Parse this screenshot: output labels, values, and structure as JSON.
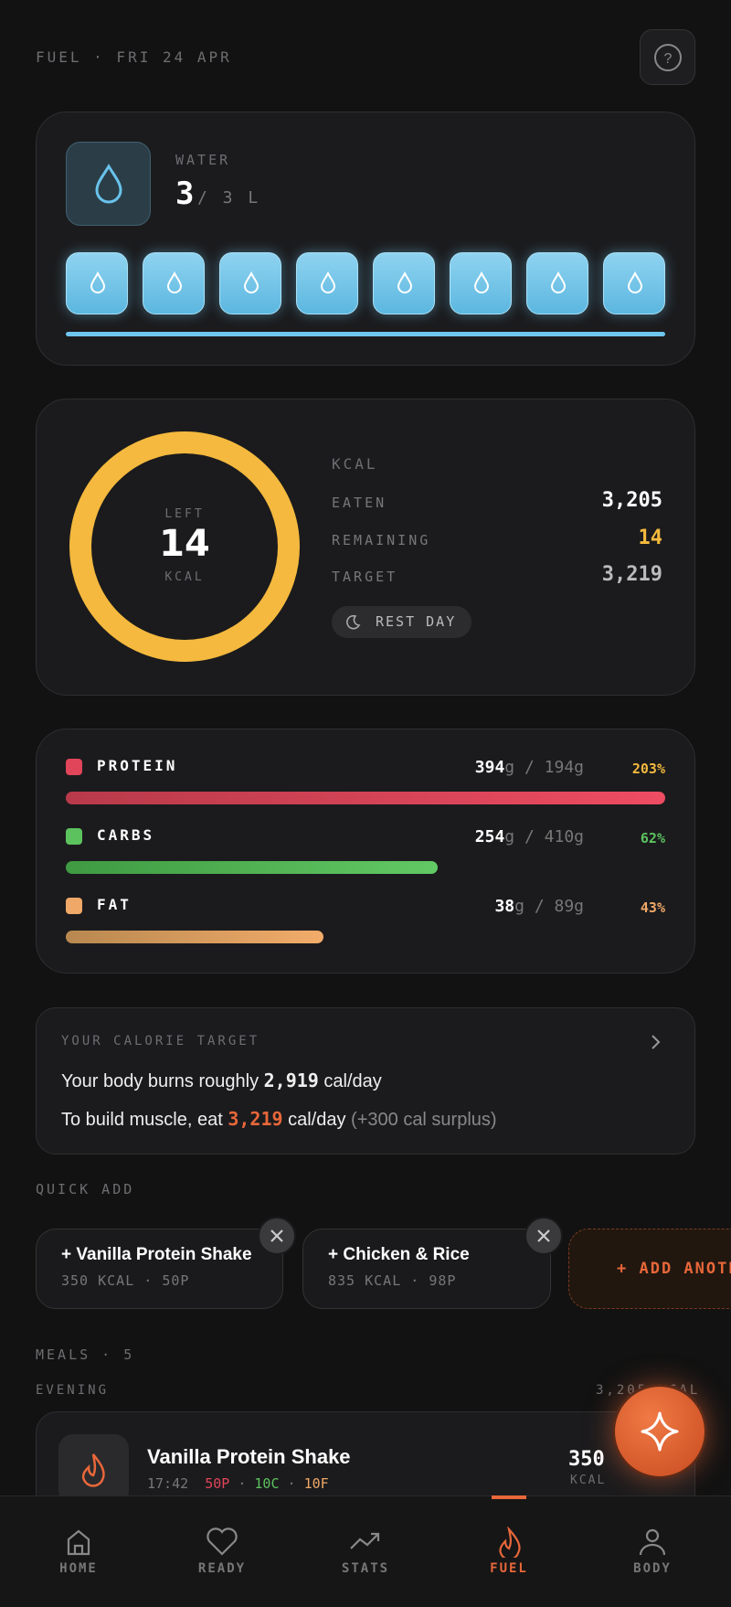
{
  "header": {
    "title": "FUEL · FRI 24 APR"
  },
  "water": {
    "label": "WATER",
    "value": "3",
    "of": "/ 3 L"
  },
  "calories": {
    "ring": {
      "caption": "LEFT",
      "value": "14",
      "unit": "KCAL"
    },
    "heading": "KCAL",
    "rows": [
      {
        "label": "EATEN",
        "value": "3,205"
      },
      {
        "label": "REMAINING",
        "value": "14"
      },
      {
        "label": "TARGET",
        "value": "3,219"
      }
    ],
    "badge": "REST DAY"
  },
  "macros": [
    {
      "name": "PROTEIN",
      "amount": "394",
      "rest": "g / 194g",
      "percent": "203%"
    },
    {
      "name": "CARBS",
      "amount": "254",
      "rest": "g / 410g",
      "percent": "62%"
    },
    {
      "name": "FAT",
      "amount": "38",
      "rest": "g / 89g",
      "percent": "43%"
    }
  ],
  "target_card": {
    "label": "YOUR CALORIE TARGET",
    "line1": {
      "before": "Your body burns roughly",
      "value": "2,919",
      "after": "cal/day"
    },
    "line2": {
      "before": "To build muscle, eat",
      "value": "3,219",
      "after": "cal/day",
      "note": "(+300 cal surplus)"
    }
  },
  "quick_add": {
    "label": "QUICK ADD",
    "items": [
      {
        "name": "+ Vanilla Protein Shake",
        "detail": "350 KCAL · 50P"
      },
      {
        "name": "+ Chicken & Rice",
        "detail": "835 KCAL · 98P"
      }
    ],
    "add": "+ ADD ANOTHER"
  },
  "meals": {
    "label": "MEALS · 5",
    "group": "EVENING",
    "group_total": "3,205 KCAL",
    "items": [
      {
        "name": "Vanilla Protein Shake",
        "time": "17:42",
        "protein": "50P",
        "separator": "·",
        "carbs": "10C",
        "fat": "10F",
        "kcal": "350",
        "unit": "KCAL"
      }
    ]
  },
  "nav": [
    {
      "label": "HOME"
    },
    {
      "label": "READY"
    },
    {
      "label": "STATS"
    },
    {
      "label": "FUEL"
    },
    {
      "label": "BODY"
    }
  ]
}
